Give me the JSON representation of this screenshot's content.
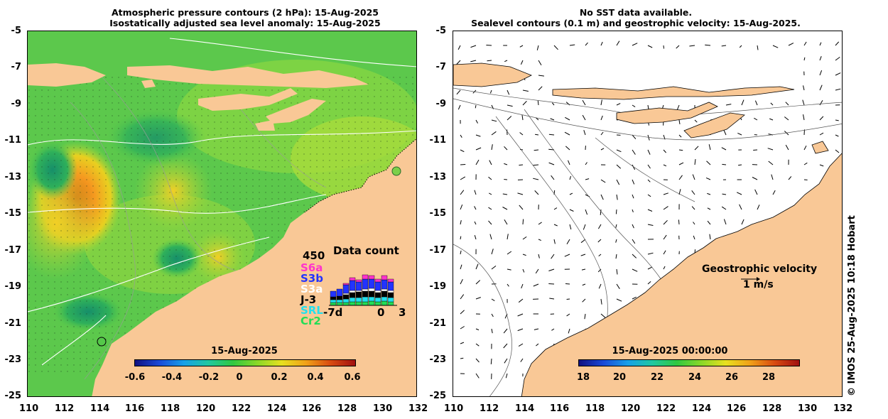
{
  "left": {
    "title_line1": "Atmospheric pressure contours (2 hPa): 15-Aug-2025",
    "title_line2": "Isostatically adjusted sea level anomaly: 15-Aug-2025",
    "colorbar": {
      "title": "15-Aug-2025",
      "ticks": [
        "-0.6",
        "-0.4",
        "-0.2",
        "0",
        "0.2",
        "0.4",
        "0.6"
      ]
    },
    "data_count": {
      "title": "Data count",
      "max": "450",
      "missions": [
        "S6a",
        "S3b",
        "S3a",
        "J-3",
        "SRL",
        "Cr2"
      ],
      "mission_colors": [
        "#ff33cc",
        "#2233ff",
        "#ffffff",
        "#000000",
        "#22e0ee",
        "#22dd55"
      ],
      "x_start": "-7d",
      "x_zero": "0",
      "x_end": "3"
    }
  },
  "right": {
    "title_line1": "No SST data available.",
    "title_line2": "Sealevel contours (0.1 m) and geostrophic velocity: 15-Aug-2025.",
    "velocity_label": "Geostrophic velocity",
    "velocity_scale": "1 m/s",
    "colorbar": {
      "title": "15-Aug-2025 00:00:00",
      "ticks": [
        "18",
        "20",
        "22",
        "24",
        "26",
        "28"
      ]
    }
  },
  "y_ticks": [
    "-5",
    "-7",
    "-9",
    "-11",
    "-13",
    "-15",
    "-17",
    "-19",
    "-21",
    "-23",
    "-25"
  ],
  "x_ticks": [
    "110",
    "112",
    "114",
    "116",
    "118",
    "120",
    "122",
    "124",
    "126",
    "128",
    "130",
    "132"
  ],
  "credit": "© IMOS 25-Aug-2025 10:18 Hobart",
  "colors": {
    "land": "#f9c896",
    "ocean_green": "#55c84a",
    "anomaly_high": "#f08a1a",
    "anomaly_low": "#1a9a6a"
  }
}
